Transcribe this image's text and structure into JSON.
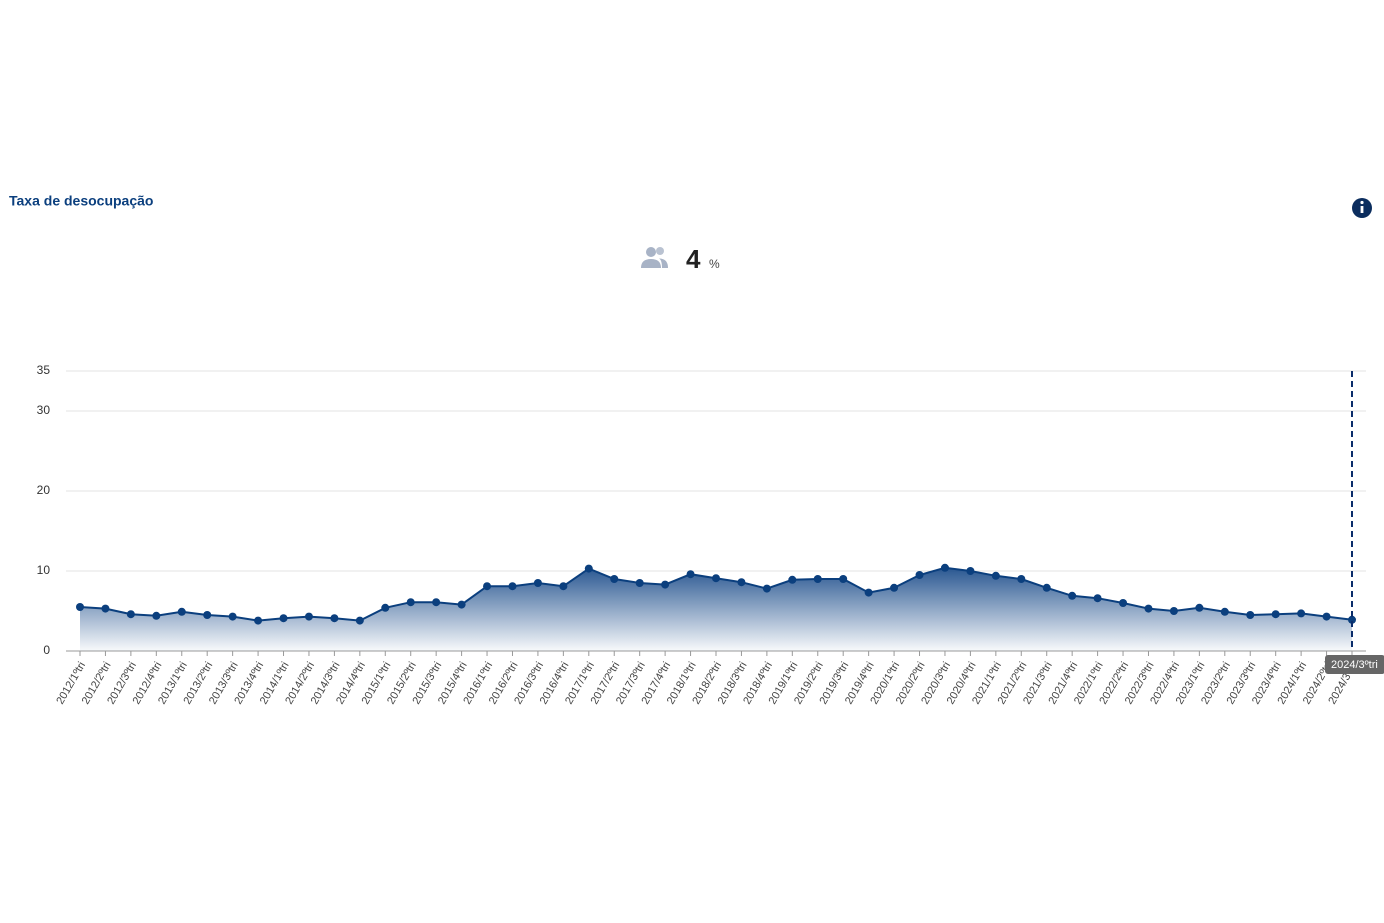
{
  "header": {
    "title": "Taxa de desocupação",
    "kpi": 4,
    "kpi_unit": "%"
  },
  "chart_data": {
    "type": "area",
    "categories": [
      "2012/1ºtri",
      "2012/2ºtri",
      "2012/3ºtri",
      "2012/4ºtri",
      "2013/1ºtri",
      "2013/2ºtri",
      "2013/3ºtri",
      "2013/4ºtri",
      "2014/1ºtri",
      "2014/2ºtri",
      "2014/3ºtri",
      "2014/4ºtri",
      "2015/1ºtri",
      "2015/2ºtri",
      "2015/3ºtri",
      "2015/4ºtri",
      "2016/1ºtri",
      "2016/2ºtri",
      "2016/3ºtri",
      "2016/4ºtri",
      "2017/1ºtri",
      "2017/2ºtri",
      "2017/3ºtri",
      "2017/4ºtri",
      "2018/1ºtri",
      "2018/2ºtri",
      "2018/3ºtri",
      "2018/4ºtri",
      "2019/1ºtri",
      "2019/2ºtri",
      "2019/3ºtri",
      "2019/4ºtri",
      "2020/1ºtri",
      "2020/2ºtri",
      "2020/3ºtri",
      "2020/4ºtri",
      "2021/1ºtri",
      "2021/2ºtri",
      "2021/3ºtri",
      "2021/4ºtri",
      "2022/1ºtri",
      "2022/2ºtri",
      "2022/3ºtri",
      "2022/4ºtri",
      "2023/1ºtri",
      "2023/2ºtri",
      "2023/3ºtri",
      "2023/4ºtri",
      "2024/1ºtri",
      "2024/2ºtri",
      "2024/3ºtri"
    ],
    "values": [
      5.5,
      5.3,
      4.6,
      4.4,
      4.9,
      4.5,
      4.3,
      3.8,
      4.1,
      4.3,
      4.1,
      3.8,
      5.4,
      6.1,
      6.1,
      5.8,
      8.1,
      8.1,
      8.5,
      8.1,
      10.3,
      9.0,
      8.5,
      8.3,
      9.6,
      9.1,
      8.6,
      7.8,
      8.9,
      9.0,
      9.0,
      7.3,
      7.9,
      9.5,
      10.4,
      10.0,
      9.4,
      9.0,
      7.9,
      6.9,
      6.6,
      6.0,
      5.3,
      5.0,
      5.4,
      4.9,
      4.5,
      4.6,
      4.7,
      4.3,
      3.9
    ],
    "color": "#0b3f7e",
    "ylim": [
      0,
      35
    ],
    "yticks": [
      0,
      10,
      20,
      30,
      35
    ],
    "grid": true
  }
}
